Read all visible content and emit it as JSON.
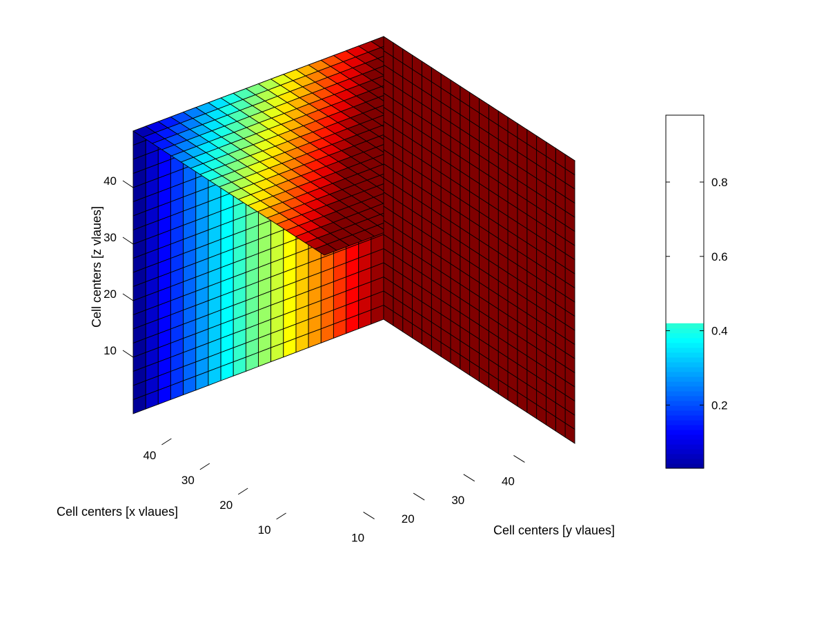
{
  "chart_data": {
    "type": "heatmap",
    "subtype": "3d-cube-surface",
    "grid_cells_per_axis": 20,
    "xlabel": "Cell centers [x vlaues]",
    "ylabel": "Cell centers [y vlaues]",
    "zlabel": "Cell centers [z vlaues]",
    "x_ticks": [
      "10",
      "20",
      "30",
      "40"
    ],
    "y_ticks": [
      "10",
      "20",
      "30",
      "40"
    ],
    "z_ticks": [
      "10",
      "20",
      "30",
      "40"
    ],
    "axis_range": [
      0,
      50
    ],
    "colormap": "jet",
    "color_min": 0.0,
    "color_max": 1.0,
    "colorbar": {
      "ticks": [
        "0.2",
        "0.4",
        "0.6",
        "0.8"
      ],
      "range": [
        0.03,
        0.98
      ],
      "filled_range": [
        0.03,
        0.42
      ],
      "placement": "right"
    },
    "faces": {
      "left_face_x50": "value increases linearly from 0 at y=0 to 1 at y=50, constant in z",
      "top_face_z50": "value increases linearly from 0 at x=50,y=0 to 1 at x=0,y=50",
      "right_face_y50": "uniform maximum value 1.0 (dark red)"
    }
  }
}
